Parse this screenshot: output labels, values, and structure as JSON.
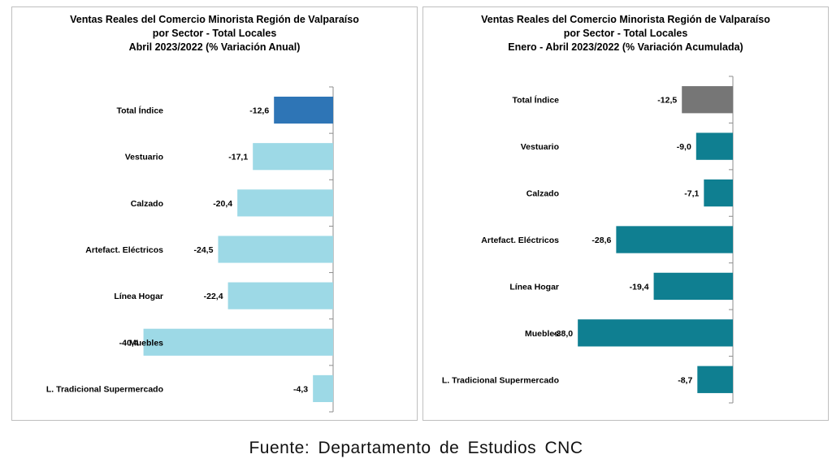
{
  "charts": {
    "left": {
      "title_lines": [
        "Ventas Reales del Comercio Minorista Región de Valparaíso",
        "por Sector - Total Locales",
        "Abril 2023/2022 (% Variación Anual)"
      ]
    },
    "right": {
      "title_lines": [
        "Ventas Reales del Comercio Minorista Región de Valparaíso",
        "por Sector  - Total Locales",
        "Enero - Abril 2023/2022 (% Variación Acumulada)"
      ]
    }
  },
  "chart_data": [
    {
      "type": "bar",
      "orientation": "horizontal",
      "title": "Ventas Reales del Comercio Minorista Región de Valparaíso por Sector - Total Locales Abril 2023/2022 (% Variación Anual)",
      "categories": [
        "Total Índice",
        "Vestuario",
        "Calzado",
        "Artefact. Eléctricos",
        "Línea Hogar",
        "Muebles",
        "L. Tradicional Supermercado"
      ],
      "values": [
        -12.6,
        -17.1,
        -20.4,
        -24.5,
        -22.4,
        -40.4,
        -4.3
      ],
      "value_labels": [
        "-12,6",
        "-17,1",
        "-20,4",
        "-24,5",
        "-22,4",
        "-40,4",
        "-4,3"
      ],
      "bar_colors": [
        "#2e75b6",
        "#9dd9e6",
        "#9dd9e6",
        "#9dd9e6",
        "#9dd9e6",
        "#9dd9e6",
        "#9dd9e6"
      ],
      "xlim": [
        -45,
        0
      ],
      "grid": false
    },
    {
      "type": "bar",
      "orientation": "horizontal",
      "title": "Ventas Reales del Comercio Minorista Región de Valparaíso por Sector - Total Locales Enero - Abril 2023/2022 (% Variación Acumulada)",
      "categories": [
        "Total Índice",
        "Vestuario",
        "Calzado",
        "Artefact. Eléctricos",
        "Línea Hogar",
        "Muebles",
        "L. Tradicional Supermercado"
      ],
      "values": [
        -12.5,
        -9.0,
        -7.1,
        -28.6,
        -19.4,
        -38.0,
        -8.7
      ],
      "value_labels": [
        "-12,5",
        "-9,0",
        "-7,1",
        "-28,6",
        "-19,4",
        "-38,0",
        "-8,7"
      ],
      "bar_colors": [
        "#767676",
        "#0f7f91",
        "#0f7f91",
        "#0f7f91",
        "#0f7f91",
        "#0f7f91",
        "#0f7f91"
      ],
      "xlim": [
        -45,
        0
      ],
      "grid": false
    }
  ],
  "source": "Fuente: Departamento de Estudios CNC"
}
